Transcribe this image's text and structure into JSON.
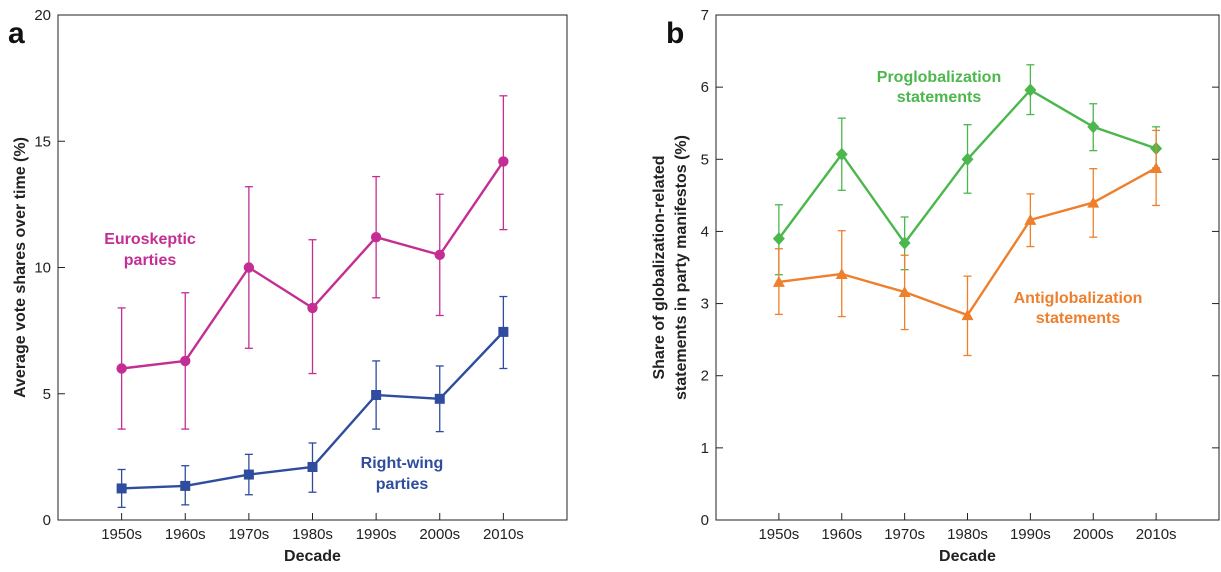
{
  "chart_data": [
    {
      "panel": "a",
      "type": "line",
      "categories": [
        "1950s",
        "1960s",
        "1970s",
        "1980s",
        "1990s",
        "2000s",
        "2010s"
      ],
      "xlabel": "Decade",
      "ylabel": "Average vote shares over time (%)",
      "ylim": [
        0,
        20
      ],
      "yticks": [
        0,
        5,
        10,
        15,
        20
      ],
      "grid": false,
      "series": [
        {
          "annotation_lines": [
            "Euroskeptic",
            "parties"
          ],
          "color": "#C42E93",
          "marker": "circle",
          "values": [
            6.0,
            6.3,
            10.0,
            8.4,
            11.2,
            10.5,
            14.2
          ],
          "lower": [
            3.6,
            3.6,
            6.8,
            5.8,
            8.8,
            8.1,
            11.5
          ],
          "upper": [
            8.4,
            9.0,
            13.2,
            11.1,
            13.6,
            12.9,
            16.8
          ]
        },
        {
          "annotation_lines": [
            "Right-wing",
            "parties"
          ],
          "color": "#2F4C9E",
          "marker": "square",
          "values": [
            1.25,
            1.35,
            1.8,
            2.1,
            4.95,
            4.8,
            7.45
          ],
          "lower": [
            0.5,
            0.6,
            1.0,
            1.1,
            3.6,
            3.5,
            6.0
          ],
          "upper": [
            2.0,
            2.15,
            2.6,
            3.05,
            6.3,
            6.1,
            8.85
          ]
        }
      ]
    },
    {
      "panel": "b",
      "type": "line",
      "categories": [
        "1950s",
        "1960s",
        "1970s",
        "1980s",
        "1990s",
        "2000s",
        "2010s"
      ],
      "xlabel": "Decade",
      "ylabel": "Share of globalization-related statements in party manifestos (%)",
      "ylabel_lines": [
        "Share of globalization-related",
        "statements in party manifestos (%)"
      ],
      "ylim": [
        0,
        7
      ],
      "yticks": [
        0,
        1,
        2,
        3,
        4,
        5,
        6,
        7
      ],
      "grid": false,
      "series": [
        {
          "annotation_lines": [
            "Proglobalization",
            "statements"
          ],
          "color": "#4CB74C",
          "marker": "diamond",
          "values": [
            3.9,
            5.07,
            3.84,
            5.0,
            5.96,
            5.45,
            5.15
          ],
          "lower": [
            3.4,
            4.57,
            3.47,
            4.53,
            5.62,
            5.12,
            4.88
          ],
          "upper": [
            4.37,
            5.57,
            4.2,
            5.48,
            6.31,
            5.77,
            5.45
          ]
        },
        {
          "annotation_lines": [
            "Antiglobalization",
            "statements"
          ],
          "color": "#EE7F2D",
          "marker": "triangle",
          "values": [
            3.3,
            3.41,
            3.16,
            2.84,
            4.16,
            4.4,
            4.88
          ],
          "lower": [
            2.85,
            2.82,
            2.64,
            2.28,
            3.79,
            3.92,
            4.36
          ],
          "upper": [
            3.76,
            4.01,
            3.67,
            3.38,
            4.52,
            4.87,
            5.4
          ]
        }
      ]
    }
  ]
}
